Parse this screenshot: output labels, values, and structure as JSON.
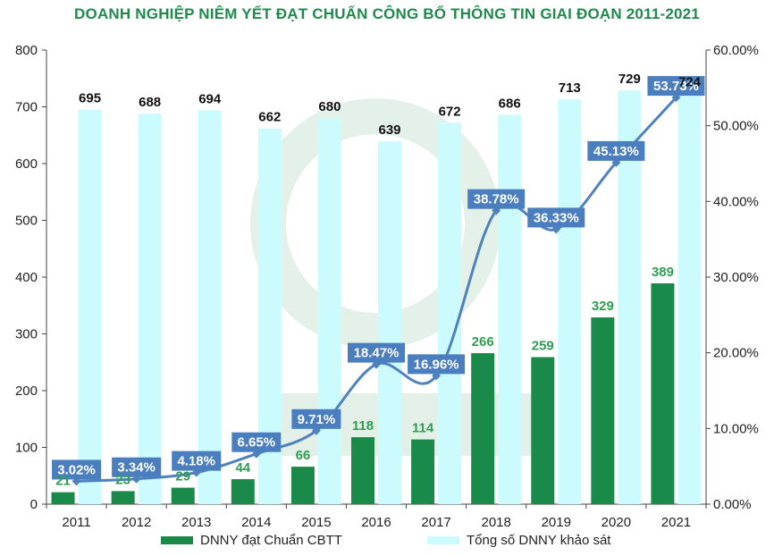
{
  "title": "DOANH NGHIỆP NIÊM YẾT ĐẠT CHUẨN CÔNG BỐ THÔNG TIN GIAI ĐOẠN 2011-2021",
  "colors": {
    "title": "#1f8a4c",
    "bar_cbtt": "#1a8a4a",
    "bar_total": "#ccfbfd",
    "line": "#4f81bd",
    "label_box": "#4a7ebf",
    "cbtt_label": "#2e9e52",
    "total_label": "#111111"
  },
  "legend": {
    "items": [
      {
        "label": "DNNY đạt Chuẩn CBTT",
        "color": "#1a8a4a"
      },
      {
        "label": "Tổng số DNNY khảo sát",
        "color": "#ccfbfd"
      }
    ]
  },
  "chart_data": {
    "type": "bar",
    "categories": [
      "2011",
      "2012",
      "2013",
      "2014",
      "2015",
      "2016",
      "2017",
      "2018",
      "2019",
      "2020",
      "2021"
    ],
    "series": [
      {
        "name": "DNNY đạt Chuẩn CBTT",
        "type": "bar",
        "axis": "left",
        "values": [
          21,
          23,
          29,
          44,
          66,
          118,
          114,
          266,
          259,
          329,
          389
        ]
      },
      {
        "name": "Tổng số DNNY khảo sát",
        "type": "bar",
        "axis": "left",
        "values": [
          695,
          688,
          694,
          662,
          680,
          639,
          672,
          686,
          713,
          729,
          724
        ]
      },
      {
        "type": "line",
        "axis": "right",
        "values": [
          3.02,
          3.34,
          4.18,
          6.65,
          9.71,
          18.47,
          16.96,
          38.78,
          36.33,
          45.13,
          53.73
        ],
        "labels": [
          "3.02%",
          "3.34%",
          "4.18%",
          "6.65%",
          "9.71%",
          "18.47%",
          "16.96%",
          "38.78%",
          "36.33%",
          "45.13%",
          "53.73%"
        ]
      }
    ],
    "y_left": {
      "min": 0,
      "max": 800,
      "ticks": [
        "0",
        "100",
        "200",
        "300",
        "400",
        "500",
        "600",
        "700",
        "800"
      ]
    },
    "y_right": {
      "min": 0,
      "max": 60,
      "ticks": [
        "0.00%",
        "10.00%",
        "20.00%",
        "30.00%",
        "40.00%",
        "50.00%",
        "60.00%"
      ]
    },
    "grid": false,
    "legend_position": "bottom"
  }
}
